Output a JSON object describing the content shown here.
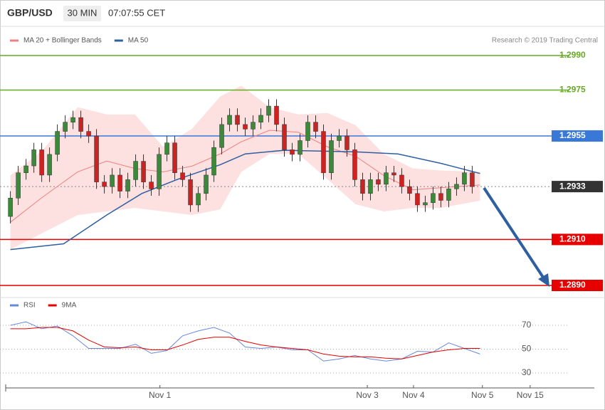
{
  "header": {
    "symbol": "GBP/USD",
    "interval": "30 MIN",
    "time": "07:07:55 CET",
    "credit": "Research © 2019 Trading Central"
  },
  "chart_data": [
    {
      "type": "candlestick",
      "xlim": [
        -0.6,
        74.6
      ],
      "ylim": [
        1.2885,
        1.2995
      ],
      "up_color": "#3a8a3a",
      "down_color": "#cc2222",
      "candles": {
        "open": [
          1.292,
          1.2928,
          1.2939,
          1.2942,
          1.2949,
          1.2938,
          1.2947,
          1.2957,
          1.2961,
          1.2963,
          1.2957,
          1.2955,
          1.2935,
          1.2933,
          1.2938,
          1.2931,
          1.2936,
          1.2944,
          1.2935,
          1.2932,
          1.2947,
          1.2952,
          1.2939,
          1.2936,
          1.2925,
          1.293,
          1.2938,
          1.295,
          1.296,
          1.2964,
          1.296,
          1.2958,
          1.2961,
          1.2964,
          1.2968,
          1.296,
          1.2949,
          1.2947,
          1.2953,
          1.2961,
          1.2957,
          1.2939,
          1.2953,
          1.2955,
          1.2949,
          1.2936,
          1.293,
          1.2936,
          1.2934,
          1.2939,
          1.2938,
          1.2933,
          1.293,
          1.2925,
          1.2926,
          1.293,
          1.2927,
          1.2932,
          1.2934,
          1.2939
        ],
        "high": [
          1.2931,
          1.2942,
          1.2945,
          1.2952,
          1.2952,
          1.295,
          1.296,
          1.2964,
          1.2966,
          1.2966,
          1.296,
          1.2958,
          1.2938,
          1.2941,
          1.2941,
          1.2939,
          1.2947,
          1.2947,
          1.2938,
          1.295,
          1.2955,
          1.2955,
          1.2942,
          1.2939,
          1.2933,
          1.2941,
          1.2953,
          1.2963,
          1.2967,
          1.2967,
          1.2963,
          1.2964,
          1.2967,
          1.2971,
          1.2971,
          1.2963,
          1.2952,
          1.2956,
          1.2964,
          1.2964,
          1.296,
          1.2956,
          1.2958,
          1.2958,
          1.2952,
          1.2939,
          1.2939,
          1.2939,
          1.2942,
          1.2942,
          1.2941,
          1.2936,
          1.2933,
          1.2929,
          1.2933,
          1.2933,
          1.2935,
          1.2937,
          1.2942,
          1.2942
        ],
        "low": [
          1.2917,
          1.2925,
          1.2936,
          1.2939,
          1.2935,
          1.2935,
          1.2944,
          1.2954,
          1.2958,
          1.2954,
          1.2952,
          1.2932,
          1.293,
          1.293,
          1.2928,
          1.2928,
          1.2933,
          1.2932,
          1.2929,
          1.2929,
          1.2944,
          1.2936,
          1.2933,
          1.2922,
          1.2922,
          1.2927,
          1.2935,
          1.2947,
          1.2957,
          1.2957,
          1.2955,
          1.2955,
          1.2958,
          1.2961,
          1.2957,
          1.2946,
          1.2944,
          1.2944,
          1.295,
          1.2954,
          1.2936,
          1.2936,
          1.295,
          1.2946,
          1.2933,
          1.2927,
          1.2927,
          1.2931,
          1.2931,
          1.2935,
          1.293,
          1.2927,
          1.2922,
          1.2922,
          1.2923,
          1.2924,
          1.2924,
          1.2929,
          1.2931,
          1.293
        ],
        "close": [
          1.2928,
          1.2939,
          1.2942,
          1.2949,
          1.2938,
          1.2947,
          1.2957,
          1.2961,
          1.2963,
          1.2957,
          1.2955,
          1.2935,
          1.2933,
          1.2938,
          1.2931,
          1.2936,
          1.2944,
          1.2935,
          1.2932,
          1.2947,
          1.2952,
          1.2939,
          1.2936,
          1.2925,
          1.293,
          1.2938,
          1.295,
          1.296,
          1.2964,
          1.296,
          1.2958,
          1.2961,
          1.2964,
          1.2968,
          1.296,
          1.2949,
          1.2947,
          1.2953,
          1.2961,
          1.2957,
          1.2939,
          1.2953,
          1.2955,
          1.2949,
          1.2936,
          1.293,
          1.2936,
          1.2934,
          1.2939,
          1.2938,
          1.2933,
          1.293,
          1.2925,
          1.2926,
          1.293,
          1.2927,
          1.2932,
          1.2934,
          1.2939,
          1.2933
        ]
      },
      "series": [
        {
          "name": "MA 20 + Bollinger Bands",
          "color": "#f08080",
          "band_color": "#fde0e0",
          "x": [
            0,
            4.1,
            8.6,
            12.3,
            15.9,
            19.5,
            23.2,
            26.8,
            29.5,
            33.1,
            36.8,
            40.5,
            44.1,
            47.7,
            51.4,
            55,
            60
          ],
          "values": [
            1.29175,
            1.29284,
            1.29394,
            1.29441,
            1.29409,
            1.29394,
            1.29419,
            1.29472,
            1.29525,
            1.29575,
            1.29566,
            1.29503,
            1.29462,
            1.29378,
            1.29316,
            1.29325,
            1.29337
          ],
          "upper": [
            1.29378,
            1.29487,
            1.29675,
            1.29644,
            1.29644,
            1.29503,
            1.29581,
            1.29722,
            1.29769,
            1.29675,
            1.29644,
            1.2965,
            1.29597,
            1.29472,
            1.29409,
            1.294,
            1.29394
          ],
          "lower": [
            1.29056,
            1.29128,
            1.29206,
            1.29222,
            1.29237,
            1.29222,
            1.29206,
            1.29231,
            1.29394,
            1.29472,
            1.29472,
            1.29362,
            1.29253,
            1.29222,
            1.29237,
            1.29237,
            1.29269
          ]
        },
        {
          "name": "MA 50",
          "color": "#2e5fa0",
          "x": [
            0,
            6.8,
            12.3,
            16.8,
            21.4,
            26.8,
            30,
            35,
            44.1,
            49.5,
            55,
            60
          ],
          "values": [
            1.29056,
            1.29081,
            1.29206,
            1.293,
            1.29362,
            1.29425,
            1.29472,
            1.29488,
            1.29481,
            1.29472,
            1.29431,
            1.29387
          ]
        }
      ],
      "levels": [
        {
          "value": 1.299,
          "label": "1.2990",
          "color": "#66aa22",
          "style": "line",
          "boxed": false
        },
        {
          "value": 1.2975,
          "label": "1.2975",
          "color": "#66aa22",
          "style": "line",
          "boxed": false
        },
        {
          "value": 1.2955,
          "label": "1.2955",
          "color": "#3a78d8",
          "style": "line",
          "boxed": true
        },
        {
          "value": 1.2933,
          "label": "1.2933",
          "color": "#333333",
          "style": "dotted",
          "boxed": true
        },
        {
          "value": 1.291,
          "label": "1.2910",
          "color": "#e60000",
          "style": "line",
          "boxed": true
        },
        {
          "value": 1.289,
          "label": "1.2890",
          "color": "#e60000",
          "style": "line",
          "boxed": true
        }
      ]
    },
    {
      "type": "line",
      "xlim": [
        -0.6,
        74.6
      ],
      "ylim": [
        21,
        77
      ],
      "yticks": [
        70,
        50,
        30
      ],
      "xticks": [
        {
          "value": 19.1,
          "label": "Nov 1"
        },
        {
          "value": 45.6,
          "label": "Nov 3"
        },
        {
          "value": 51.5,
          "label": "Nov 4"
        },
        {
          "value": 60.3,
          "label": "Nov 5"
        },
        {
          "value": 66.4,
          "label": "Nov 15"
        }
      ],
      "x": [
        0,
        2,
        4,
        6,
        8,
        10,
        12,
        14,
        16,
        18,
        20,
        22,
        24,
        26,
        28,
        30,
        32,
        34,
        36,
        38,
        40,
        42,
        44,
        46,
        48,
        50,
        52,
        54,
        56,
        58,
        60
      ],
      "series": [
        {
          "name": "RSI",
          "color": "#6688dd",
          "values": [
            70,
            72.9,
            67.1,
            69.4,
            61.2,
            50.6,
            50.6,
            50.6,
            54.1,
            46.5,
            48.8,
            61.2,
            65.3,
            68.2,
            63.5,
            51.8,
            50.6,
            51.8,
            49.4,
            49.4,
            40,
            41.8,
            44.7,
            41.8,
            40,
            41.8,
            48.2,
            47.6,
            55.3,
            50.6,
            45.9
          ]
        },
        {
          "name": "9MA",
          "color": "#e60000",
          "values": [
            67.1,
            67.1,
            68.2,
            68.2,
            65.3,
            57.6,
            51.8,
            51.2,
            51.8,
            49.4,
            49.4,
            53.5,
            58.2,
            60,
            60,
            56.5,
            53.5,
            51.8,
            50.6,
            49.4,
            45.9,
            44.1,
            43.5,
            43.5,
            42.4,
            41.8,
            44.7,
            47.6,
            49.4,
            50.6,
            50.6
          ]
        }
      ]
    }
  ]
}
